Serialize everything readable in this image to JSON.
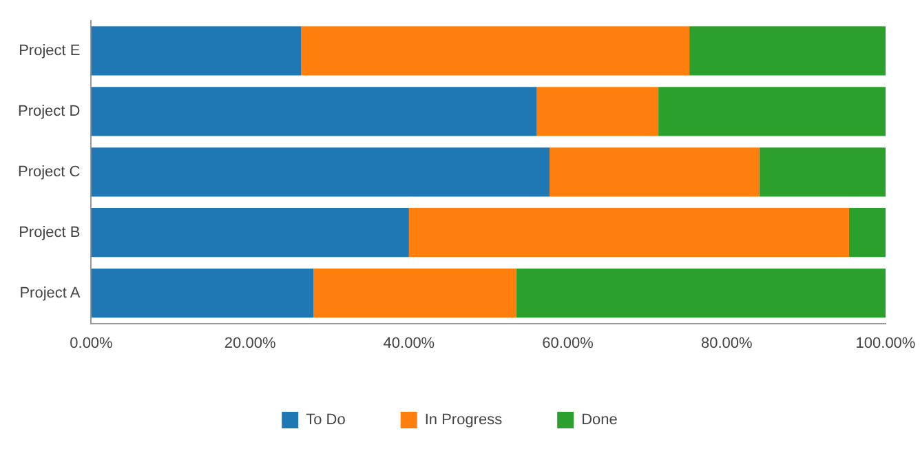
{
  "chart_data": {
    "type": "bar",
    "orientation": "horizontal",
    "stacked": true,
    "categories": [
      "Project E",
      "Project D",
      "Project C",
      "Project B",
      "Project A"
    ],
    "series": [
      {
        "name": "To Do",
        "color": "#1f77b4",
        "values": [
          26.4,
          56.1,
          57.7,
          40.0,
          28.0
        ]
      },
      {
        "name": "In Progress",
        "color": "#ff7f0e",
        "values": [
          48.9,
          15.3,
          26.4,
          55.4,
          25.5
        ]
      },
      {
        "name": "Done",
        "color": "#2ca02c",
        "values": [
          24.7,
          28.6,
          15.9,
          4.6,
          46.5
        ]
      }
    ],
    "xlim": [
      0,
      100
    ],
    "xticks": [
      {
        "value": 0,
        "label": "0.00%"
      },
      {
        "value": 20,
        "label": "20.00%"
      },
      {
        "value": 40,
        "label": "40.00%"
      },
      {
        "value": 60,
        "label": "60.00%"
      },
      {
        "value": 80,
        "label": "80.00%"
      },
      {
        "value": 100,
        "label": "100.00%"
      }
    ],
    "grid": false,
    "legend": "bottom"
  }
}
